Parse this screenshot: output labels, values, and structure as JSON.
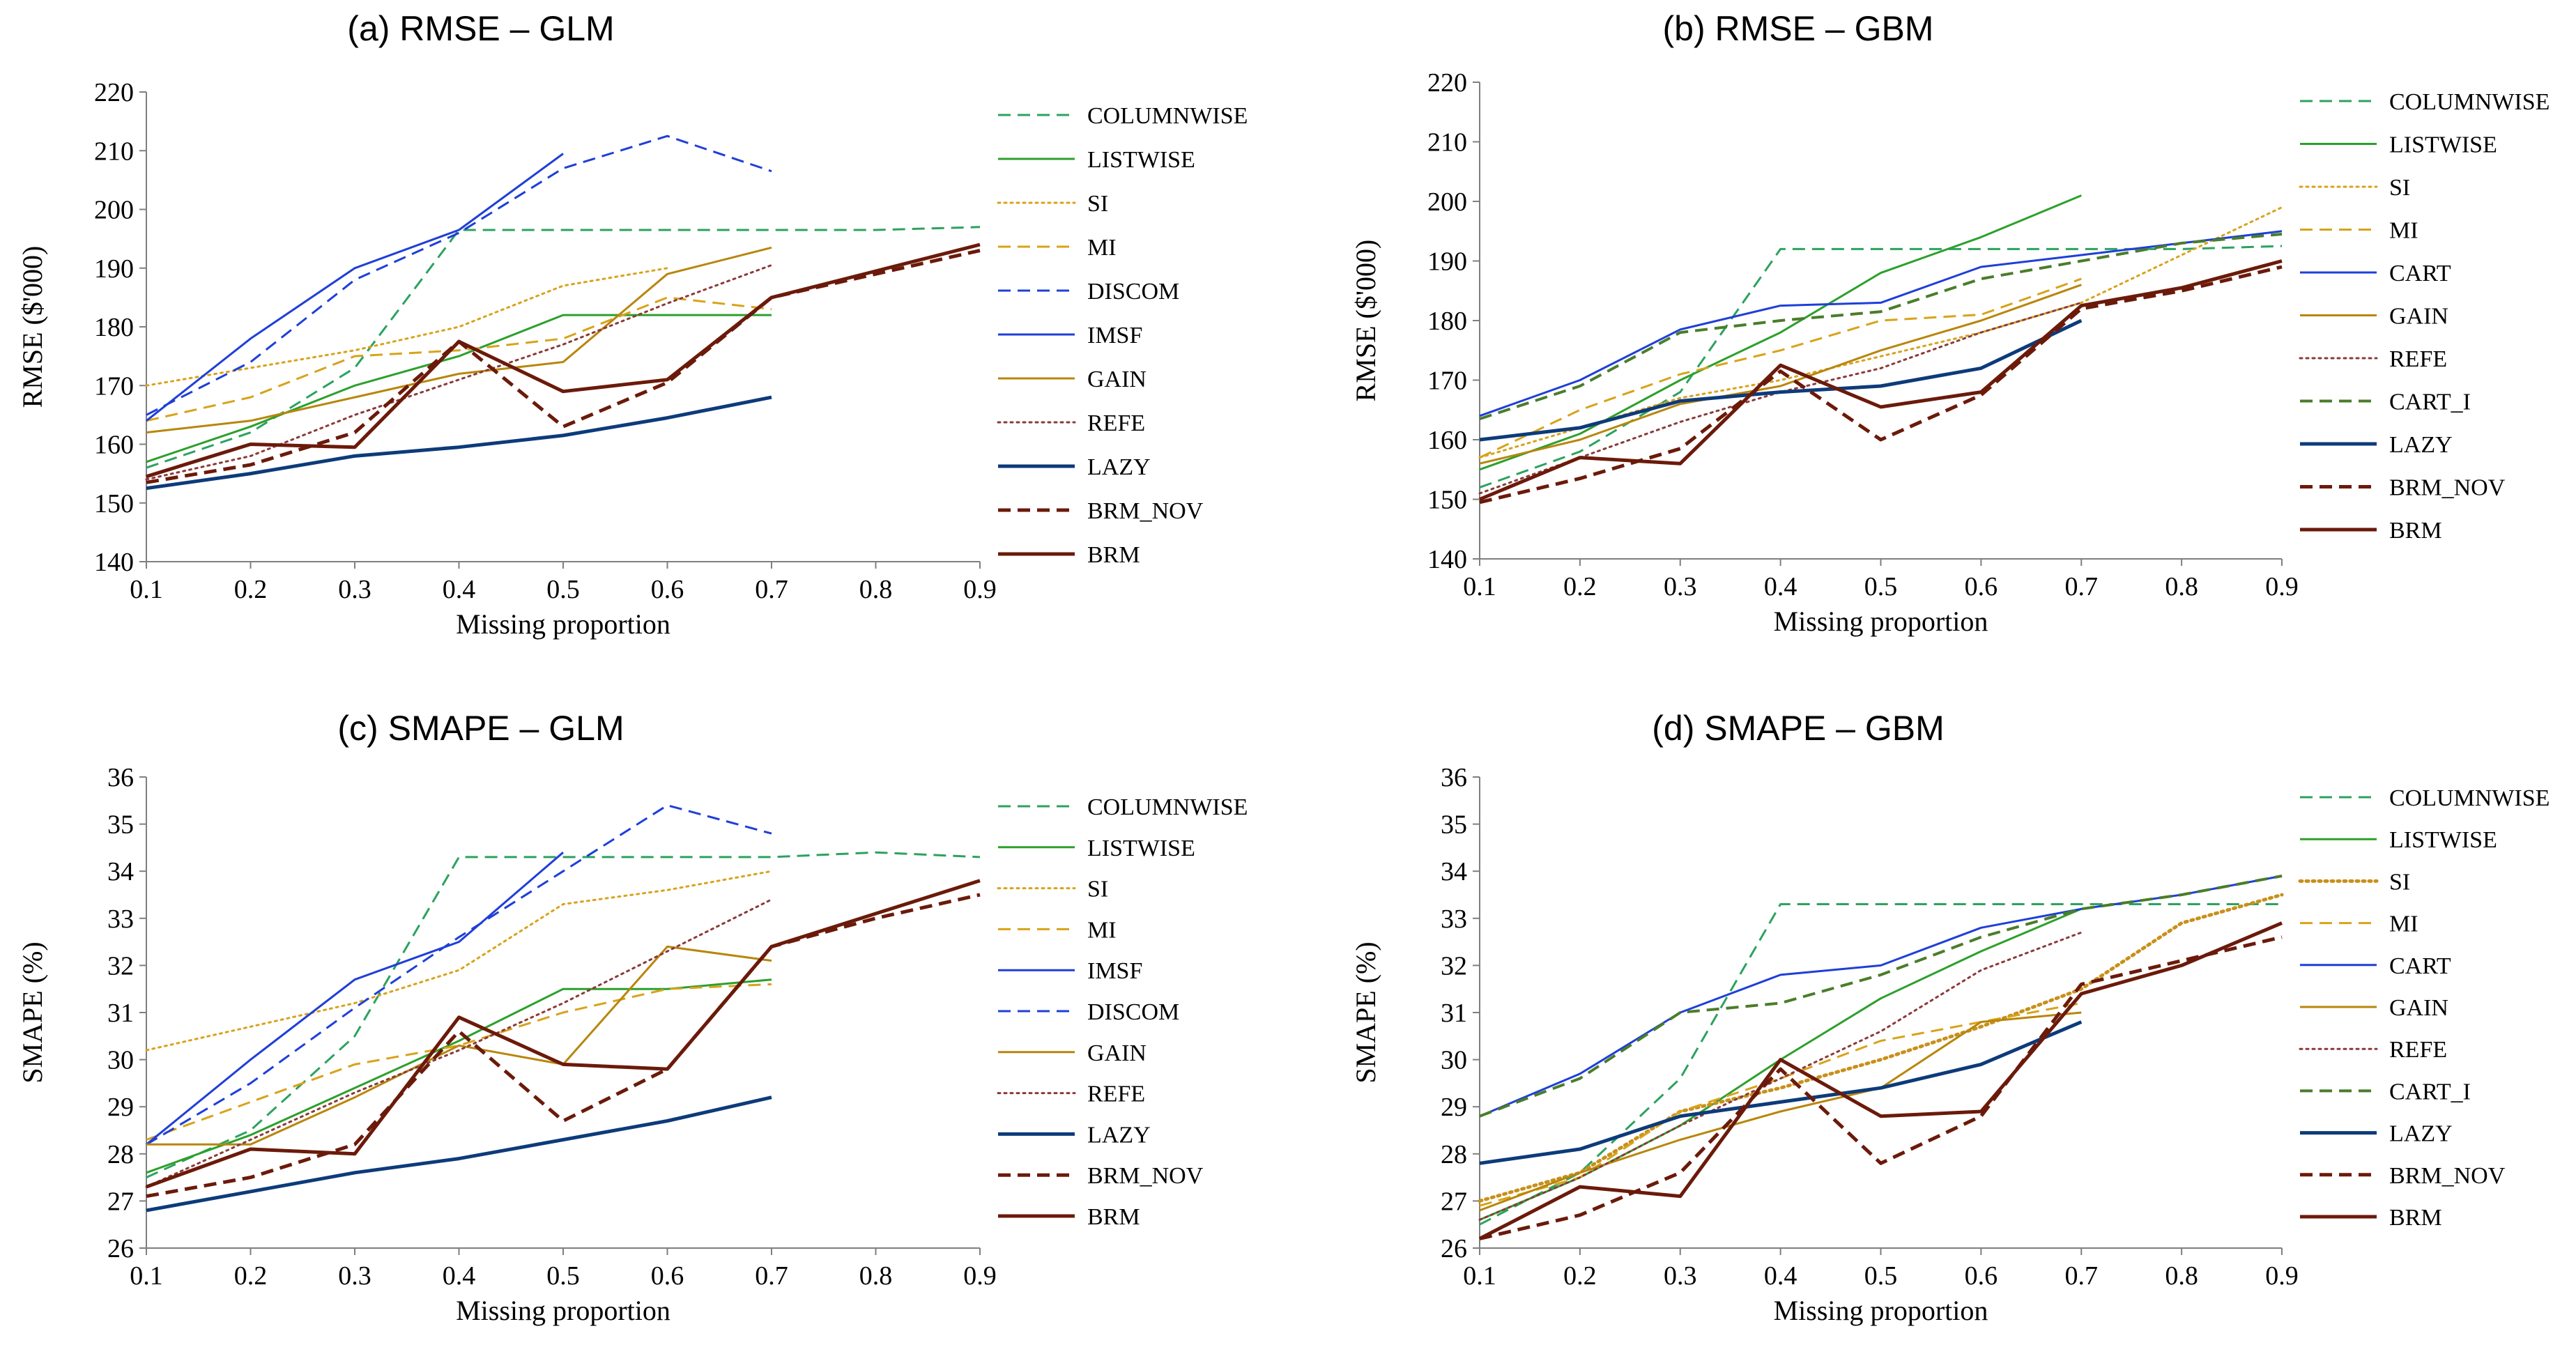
{
  "figure_title": "",
  "chart_data": [
    {
      "type": "line",
      "title": "(a) RMSE – GLM",
      "xlabel": "Missing proportion",
      "ylabel": "RMSE ($'000)",
      "x": [
        0.1,
        0.2,
        0.3,
        0.4,
        0.5,
        0.6,
        0.7,
        0.8,
        0.9
      ],
      "xticks": [
        "0.1",
        "0.2",
        "0.3",
        "0.4",
        "0.5",
        "0.6",
        "0.7",
        "0.8",
        "0.9"
      ],
      "ylim": [
        140,
        220
      ],
      "yticks": [
        140,
        150,
        160,
        170,
        180,
        190,
        200,
        210,
        220
      ],
      "legend_position": "right",
      "series": [
        {
          "name": "COLUMNWISE",
          "color": "#2ca25f",
          "dash": "dash",
          "width": 3,
          "values": [
            156,
            162,
            173,
            196.5,
            196.5,
            196.5,
            196.5,
            196.5,
            197
          ]
        },
        {
          "name": "LISTWISE",
          "color": "#2ca02c",
          "dash": "solid",
          "width": 3,
          "values": [
            157,
            163,
            170,
            175,
            182,
            182,
            182,
            null,
            null
          ]
        },
        {
          "name": "SI",
          "color": "#d8a31a",
          "dash": "dot",
          "width": 3,
          "values": [
            170,
            173,
            176,
            180,
            187,
            190,
            null,
            null,
            null
          ]
        },
        {
          "name": "MI",
          "color": "#d8a31a",
          "dash": "dash",
          "width": 3,
          "values": [
            164,
            168,
            175,
            176,
            178,
            185,
            183,
            null,
            null
          ]
        },
        {
          "name": "DISCOM",
          "color": "#1f3fd8",
          "dash": "dash",
          "width": 3,
          "values": [
            165,
            174,
            188,
            196,
            207,
            212.5,
            206.5,
            null,
            null
          ]
        },
        {
          "name": "IMSF",
          "color": "#1f3fd8",
          "dash": "solid",
          "width": 3,
          "values": [
            164,
            178,
            190,
            196.5,
            209.5,
            null,
            null,
            null,
            null
          ]
        },
        {
          "name": "GAIN",
          "color": "#b8860b",
          "dash": "solid",
          "width": 3,
          "values": [
            162,
            164,
            168,
            172,
            174,
            189,
            193.5,
            null,
            null
          ]
        },
        {
          "name": "REFE",
          "color": "#8b3a3a",
          "dash": "dot",
          "width": 3,
          "values": [
            154,
            158,
            165,
            171,
            177,
            184,
            190.5,
            null,
            null
          ]
        },
        {
          "name": "LAZY",
          "color": "#0d3b7a",
          "dash": "solid",
          "width": 5,
          "values": [
            152.5,
            155,
            158,
            159.5,
            161.5,
            164.5,
            168,
            null,
            null
          ]
        },
        {
          "name": "BRM_NOV",
          "color": "#6b1a0a",
          "dash": "dash",
          "width": 5,
          "values": [
            153.5,
            156.5,
            162,
            177.5,
            163,
            170.5,
            185,
            189,
            193
          ]
        },
        {
          "name": "BRM",
          "color": "#6b1a0a",
          "dash": "solid",
          "width": 5,
          "values": [
            154.5,
            160,
            159.5,
            177.5,
            169,
            171,
            185,
            189.5,
            194
          ]
        }
      ]
    },
    {
      "type": "line",
      "title": "(b) RMSE – GBM",
      "xlabel": "Missing proportion",
      "ylabel": "RMSE ($'000)",
      "x": [
        0.1,
        0.2,
        0.3,
        0.4,
        0.5,
        0.6,
        0.7,
        0.8,
        0.9
      ],
      "xticks": [
        "0.1",
        "0.2",
        "0.3",
        "0.4",
        "0.5",
        "0.6",
        "0.7",
        "0.8",
        "0.9"
      ],
      "ylim": [
        140,
        220
      ],
      "yticks": [
        140,
        150,
        160,
        170,
        180,
        190,
        200,
        210,
        220
      ],
      "legend_position": "right",
      "series": [
        {
          "name": "COLUMNWISE",
          "color": "#2ca25f",
          "dash": "dash",
          "width": 3,
          "values": [
            152,
            158,
            168,
            192,
            192,
            192,
            192,
            192,
            192.5
          ]
        },
        {
          "name": "LISTWISE",
          "color": "#2ca02c",
          "dash": "solid",
          "width": 3,
          "values": [
            155,
            161,
            170,
            178,
            188,
            194,
            201,
            null,
            null
          ]
        },
        {
          "name": "SI",
          "color": "#d8a31a",
          "dash": "dot",
          "width": 3,
          "values": [
            157,
            162,
            167,
            170,
            174,
            178,
            183,
            191,
            199
          ]
        },
        {
          "name": "MI",
          "color": "#d8a31a",
          "dash": "dash",
          "width": 3,
          "values": [
            157,
            165,
            171,
            175,
            180,
            181,
            187,
            null,
            null
          ]
        },
        {
          "name": "CART",
          "color": "#1f3fd8",
          "dash": "solid",
          "width": 3,
          "values": [
            164,
            170,
            178.5,
            182.5,
            183,
            189,
            191,
            193,
            195
          ]
        },
        {
          "name": "GAIN",
          "color": "#b8860b",
          "dash": "solid",
          "width": 3,
          "values": [
            156,
            160,
            166,
            169,
            175,
            180,
            186,
            null,
            null
          ]
        },
        {
          "name": "REFE",
          "color": "#8b3a3a",
          "dash": "dot",
          "width": 3,
          "values": [
            151,
            157,
            163,
            168,
            172,
            178,
            183,
            null,
            null
          ]
        },
        {
          "name": "CART_I",
          "color": "#4a7d2a",
          "dash": "dash",
          "width": 4,
          "values": [
            163.5,
            169,
            178,
            180,
            181.5,
            187,
            190,
            193,
            194.5
          ]
        },
        {
          "name": "LAZY",
          "color": "#0d3b7a",
          "dash": "solid",
          "width": 5,
          "values": [
            160,
            162,
            166.5,
            168,
            169,
            172,
            180,
            null,
            null
          ]
        },
        {
          "name": "BRM_NOV",
          "color": "#6b1a0a",
          "dash": "dash",
          "width": 5,
          "values": [
            149.5,
            153.5,
            158.5,
            171.5,
            160,
            167.5,
            182,
            185,
            189
          ]
        },
        {
          "name": "BRM",
          "color": "#6b1a0a",
          "dash": "solid",
          "width": 5,
          "values": [
            150,
            157,
            156,
            172.5,
            165.5,
            168,
            182.5,
            185.5,
            190
          ]
        }
      ]
    },
    {
      "type": "line",
      "title": "(c) SMAPE – GLM",
      "xlabel": "Missing proportion",
      "ylabel": "SMAPE (%)",
      "x": [
        0.1,
        0.2,
        0.3,
        0.4,
        0.5,
        0.6,
        0.7,
        0.8,
        0.9
      ],
      "xticks": [
        "0.1",
        "0.2",
        "0.3",
        "0.4",
        "0.5",
        "0.6",
        "0.7",
        "0.8",
        "0.9"
      ],
      "ylim": [
        26,
        36
      ],
      "yticks": [
        26,
        27,
        28,
        29,
        30,
        31,
        32,
        33,
        34,
        35,
        36
      ],
      "legend_position": "right",
      "series": [
        {
          "name": "COLUMNWISE",
          "color": "#2ca25f",
          "dash": "dash",
          "width": 3,
          "values": [
            27.5,
            28.5,
            30.5,
            34.3,
            34.3,
            34.3,
            34.3,
            34.4,
            34.3
          ]
        },
        {
          "name": "LISTWISE",
          "color": "#2ca02c",
          "dash": "solid",
          "width": 3,
          "values": [
            27.6,
            28.4,
            29.4,
            30.4,
            31.5,
            31.5,
            31.7,
            null,
            null
          ]
        },
        {
          "name": "SI",
          "color": "#d8a31a",
          "dash": "dot",
          "width": 3,
          "values": [
            30.2,
            30.7,
            31.2,
            31.9,
            33.3,
            33.6,
            34.0,
            null,
            null
          ]
        },
        {
          "name": "MI",
          "color": "#d8a31a",
          "dash": "dash",
          "width": 3,
          "values": [
            28.3,
            29.1,
            29.9,
            30.3,
            31.0,
            31.5,
            31.6,
            null,
            null
          ]
        },
        {
          "name": "IMSF",
          "color": "#1f3fd8",
          "dash": "solid",
          "width": 3,
          "values": [
            28.2,
            30.0,
            31.7,
            32.5,
            34.4,
            null,
            null,
            null,
            null
          ]
        },
        {
          "name": "DISCOM",
          "color": "#1f3fd8",
          "dash": "dash",
          "width": 3,
          "values": [
            28.2,
            29.5,
            31.1,
            32.6,
            34.0,
            35.4,
            34.8,
            null,
            null
          ]
        },
        {
          "name": "GAIN",
          "color": "#b8860b",
          "dash": "solid",
          "width": 3,
          "values": [
            28.2,
            28.2,
            29.2,
            30.3,
            29.9,
            32.4,
            32.1,
            null,
            null
          ]
        },
        {
          "name": "REFE",
          "color": "#8b3a3a",
          "dash": "dot",
          "width": 3,
          "values": [
            27.3,
            28.3,
            29.3,
            30.2,
            31.2,
            32.3,
            33.4,
            null,
            null
          ]
        },
        {
          "name": "LAZY",
          "color": "#0d3b7a",
          "dash": "solid",
          "width": 5,
          "values": [
            26.8,
            27.2,
            27.6,
            27.9,
            28.3,
            28.7,
            29.2,
            null,
            null
          ]
        },
        {
          "name": "BRM_NOV",
          "color": "#6b1a0a",
          "dash": "dash",
          "width": 5,
          "values": [
            27.1,
            27.5,
            28.2,
            30.6,
            28.7,
            29.8,
            32.4,
            33.0,
            33.5
          ]
        },
        {
          "name": "BRM",
          "color": "#6b1a0a",
          "dash": "solid",
          "width": 5,
          "values": [
            27.3,
            28.1,
            28.0,
            30.9,
            29.9,
            29.8,
            32.4,
            33.1,
            33.8
          ]
        }
      ]
    },
    {
      "type": "line",
      "title": "(d) SMAPE – GBM",
      "xlabel": "Missing proportion",
      "ylabel": "SMAPE (%)",
      "x": [
        0.1,
        0.2,
        0.3,
        0.4,
        0.5,
        0.6,
        0.7,
        0.8,
        0.9
      ],
      "xticks": [
        "0.1",
        "0.2",
        "0.3",
        "0.4",
        "0.5",
        "0.6",
        "0.7",
        "0.8",
        "0.9"
      ],
      "ylim": [
        26,
        36
      ],
      "yticks": [
        26,
        27,
        28,
        29,
        30,
        31,
        32,
        33,
        34,
        35,
        36
      ],
      "legend_position": "right",
      "series": [
        {
          "name": "COLUMNWISE",
          "color": "#2ca25f",
          "dash": "dash",
          "width": 3,
          "values": [
            26.5,
            27.6,
            29.6,
            33.3,
            33.3,
            33.3,
            33.3,
            33.3,
            33.3
          ]
        },
        {
          "name": "LISTWISE",
          "color": "#2ca02c",
          "dash": "solid",
          "width": 3,
          "values": [
            26.6,
            27.5,
            28.6,
            30.0,
            31.3,
            32.3,
            33.2,
            null,
            null
          ]
        },
        {
          "name": "SI",
          "color": "#c8901a",
          "dash": "dot",
          "width": 5,
          "values": [
            27.0,
            27.6,
            28.9,
            29.4,
            30.0,
            30.7,
            31.5,
            32.9,
            33.5
          ]
        },
        {
          "name": "MI",
          "color": "#d8a31a",
          "dash": "dash",
          "width": 3,
          "values": [
            26.9,
            27.5,
            28.9,
            29.6,
            30.4,
            30.8,
            31.2,
            null,
            null
          ]
        },
        {
          "name": "CART",
          "color": "#1f3fd8",
          "dash": "solid",
          "width": 3,
          "values": [
            28.8,
            29.7,
            31.0,
            31.8,
            32.0,
            32.8,
            33.2,
            33.5,
            33.9
          ]
        },
        {
          "name": "GAIN",
          "color": "#b8860b",
          "dash": "solid",
          "width": 3,
          "values": [
            26.8,
            27.6,
            28.3,
            28.9,
            29.4,
            30.8,
            31.0,
            null,
            null
          ]
        },
        {
          "name": "REFE",
          "color": "#8b3a3a",
          "dash": "dot",
          "width": 3,
          "values": [
            26.6,
            27.5,
            28.6,
            29.6,
            30.6,
            31.9,
            32.7,
            null,
            null
          ]
        },
        {
          "name": "CART_I",
          "color": "#4a7d2a",
          "dash": "dash",
          "width": 4,
          "values": [
            28.8,
            29.6,
            31.0,
            31.2,
            31.8,
            32.6,
            33.2,
            33.5,
            33.9
          ]
        },
        {
          "name": "LAZY",
          "color": "#0d3b7a",
          "dash": "solid",
          "width": 5,
          "values": [
            27.8,
            28.1,
            28.8,
            29.1,
            29.4,
            29.9,
            30.8,
            null,
            null
          ]
        },
        {
          "name": "BRM_NOV",
          "color": "#6b1a0a",
          "dash": "dash",
          "width": 5,
          "values": [
            26.2,
            26.7,
            27.6,
            29.8,
            27.8,
            28.8,
            31.6,
            32.1,
            32.6
          ]
        },
        {
          "name": "BRM",
          "color": "#6b1a0a",
          "dash": "solid",
          "width": 5,
          "values": [
            26.2,
            27.3,
            27.1,
            30.0,
            28.8,
            28.9,
            31.4,
            32.0,
            32.9
          ]
        }
      ]
    }
  ]
}
